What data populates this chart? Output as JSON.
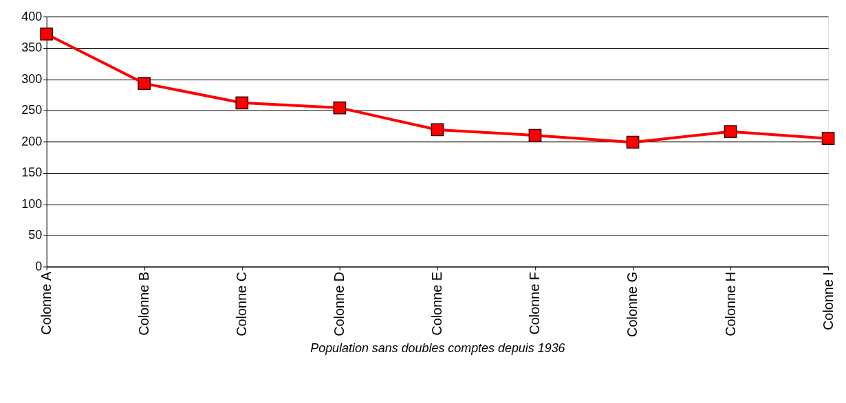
{
  "chart_data": {
    "type": "line",
    "categories": [
      "Colonne A",
      "Colonne B",
      "Colonne C",
      "Colonne D",
      "Colonne E",
      "Colonne F",
      "Colonne G",
      "Colonne H",
      "Colonne I"
    ],
    "series": [
      {
        "color": "#ff0000",
        "values": [
          372,
          293,
          262,
          254,
          219,
          210,
          199,
          216,
          205
        ]
      }
    ],
    "xlabel": "Population sans doubles comptes depuis 1936",
    "ylim": [
      0,
      400
    ],
    "yticks": [
      0,
      50,
      100,
      150,
      200,
      250,
      300,
      350,
      400
    ],
    "grid": "y",
    "marker": "square",
    "line_style": "solid"
  }
}
